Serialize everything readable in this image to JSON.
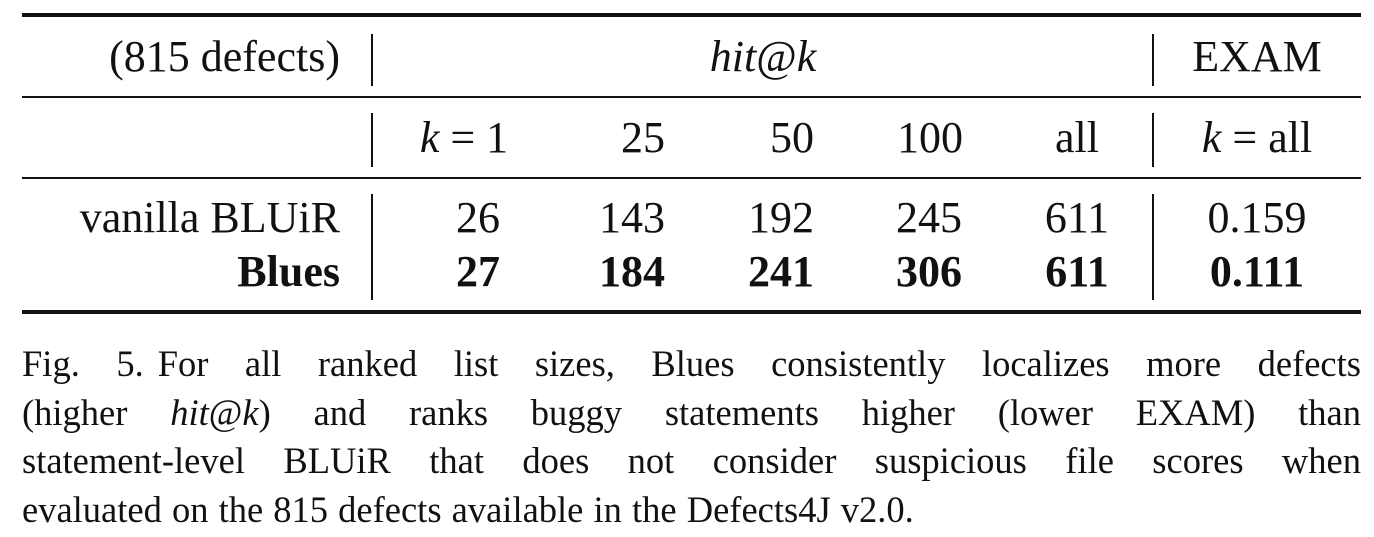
{
  "table": {
    "row_header_label": "(815 defects)",
    "group_hit": {
      "name": "hit",
      "at": "@",
      "k": "k"
    },
    "group_exam": "EXAM",
    "k_label": "k",
    "eq": " = ",
    "sub_cols": [
      "1",
      "25",
      "50",
      "100",
      "all"
    ],
    "exam_sub": "all",
    "rows": [
      {
        "name": "vanilla BLUiR",
        "bold": false,
        "values": [
          "26",
          "143",
          "192",
          "245",
          "611"
        ],
        "exam": "0.159"
      },
      {
        "name": "Blues",
        "bold": true,
        "values": [
          "27",
          "184",
          "241",
          "306",
          "611"
        ],
        "exam": "0.111"
      }
    ]
  },
  "caption": {
    "label": "Fig. 5.",
    "line1": "For all ranked list sizes, Blues consistently localizes more defects",
    "line2_a": "(higher",
    "line2_hit": "hit",
    "line2_at": "@",
    "line2_k": "k",
    "line2_b": ") and ranks buggy statements higher (lower EXAM) than",
    "line3": "statement-level BLUiR that does not consider suspicious file scores when",
    "line4": "evaluated on the 815 defects available in the Defects4J v2.0."
  }
}
